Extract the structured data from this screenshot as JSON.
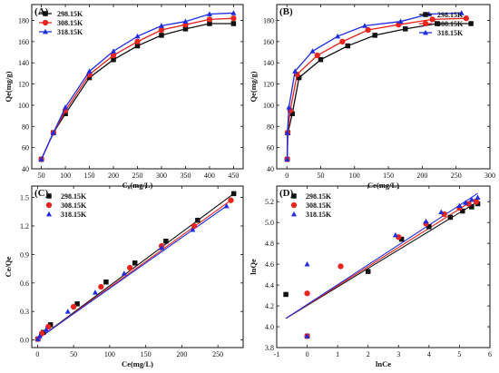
{
  "series_names": [
    "298.15K",
    "308.15K",
    "318.15K"
  ],
  "colors": [
    "#111111",
    "#e8241d",
    "#1f2de0"
  ],
  "chart_data": [
    {
      "type": "line",
      "label": "(A)",
      "xlabel": "C₀(mg/L)",
      "ylabel": "Qe(mg/g)",
      "xlim": [
        30,
        470
      ],
      "ylim": [
        40,
        195
      ],
      "xticks": [
        50,
        100,
        150,
        200,
        250,
        300,
        350,
        400,
        450
      ],
      "yticks": [
        40,
        60,
        80,
        100,
        120,
        140,
        160,
        180
      ],
      "legend": "top-left",
      "series": [
        {
          "name": "298.15K",
          "x": [
            50,
            75,
            100,
            150,
            200,
            250,
            300,
            350,
            400,
            450
          ],
          "y": [
            49,
            74,
            92,
            126,
            143,
            156,
            166,
            172,
            177,
            177
          ]
        },
        {
          "name": "308.15K",
          "x": [
            50,
            75,
            100,
            150,
            200,
            250,
            300,
            350,
            400,
            450
          ],
          "y": [
            49,
            74,
            95,
            129,
            147,
            160,
            171,
            176,
            181,
            182
          ]
        },
        {
          "name": "318.15K",
          "x": [
            50,
            75,
            100,
            150,
            200,
            250,
            300,
            350,
            400,
            450
          ],
          "y": [
            49,
            74,
            98,
            132,
            151,
            165,
            175,
            179,
            186,
            187
          ]
        }
      ]
    },
    {
      "type": "line",
      "label": "(B)",
      "xlabel": "Ce(mg/L)",
      "ylabel": "Qe(mg/g)",
      "xlim": [
        -15,
        300
      ],
      "ylim": [
        40,
        195
      ],
      "xticks": [
        0,
        50,
        100,
        150,
        200,
        250,
        300
      ],
      "yticks": [
        40,
        60,
        80,
        100,
        120,
        140,
        160,
        180
      ],
      "legend": "top-right",
      "series": [
        {
          "name": "298.15K",
          "x": [
            0.5,
            1.5,
            8,
            18,
            50,
            90,
            130,
            175,
            222,
            272
          ],
          "y": [
            49,
            74,
            92,
            126,
            143,
            156,
            166,
            172,
            177,
            177
          ]
        },
        {
          "name": "308.15K",
          "x": [
            0.5,
            1,
            5,
            15,
            45,
            82,
            120,
            165,
            215,
            265
          ],
          "y": [
            49,
            74,
            95,
            129,
            147,
            160,
            171,
            176,
            181,
            182
          ]
        },
        {
          "name": "318.15K",
          "x": [
            0.4,
            0.8,
            3,
            12,
            38,
            75,
            115,
            168,
            210,
            258
          ],
          "y": [
            49,
            74,
            98,
            132,
            151,
            165,
            175,
            179,
            186,
            187
          ]
        }
      ]
    },
    {
      "type": "scatter",
      "label": "(C)",
      "xlabel": "Ce(mg/L)",
      "ylabel": "Ce/Qe",
      "xlim": [
        -8,
        285
      ],
      "ylim": [
        -0.08,
        1.62
      ],
      "xticks": [
        0,
        50,
        100,
        150,
        200,
        250
      ],
      "yticks": [
        0.0,
        0.3,
        0.6,
        0.9,
        1.2,
        1.5
      ],
      "legend": "top-left",
      "series": [
        {
          "name": "298.15K",
          "x": [
            0.5,
            8,
            18,
            55,
            95,
            135,
            178,
            222,
            272
          ],
          "y": [
            0.01,
            0.08,
            0.16,
            0.38,
            0.61,
            0.81,
            1.04,
            1.26,
            1.54
          ]
        },
        {
          "name": "308.15K",
          "x": [
            0.5,
            6,
            15,
            50,
            88,
            128,
            172,
            217,
            268
          ],
          "y": [
            0.01,
            0.07,
            0.14,
            0.35,
            0.56,
            0.76,
            0.99,
            1.2,
            1.47
          ]
        },
        {
          "name": "318.15K",
          "x": [
            0.4,
            3,
            12,
            42,
            80,
            120,
            172,
            215,
            262
          ],
          "y": [
            0.01,
            0.04,
            0.11,
            0.3,
            0.5,
            0.7,
            0.97,
            1.16,
            1.41
          ]
        }
      ]
    },
    {
      "type": "scatter",
      "label": "(D)",
      "xlabel": "lnCe",
      "ylabel": "lnQe",
      "xlim": [
        -1,
        6
      ],
      "ylim": [
        3.8,
        5.35
      ],
      "xticks": [
        -1,
        0,
        1,
        2,
        3,
        4,
        5,
        6
      ],
      "yticks": [
        3.8,
        4.0,
        4.2,
        4.4,
        4.6,
        4.8,
        5.0,
        5.2
      ],
      "legend": "top-left",
      "series": [
        {
          "name": "298.15K",
          "x": [
            -0.7,
            0,
            2.0,
            3.1,
            4.0,
            4.7,
            5.1,
            5.4,
            5.6
          ],
          "y": [
            4.31,
            3.91,
            4.53,
            4.84,
            4.96,
            5.05,
            5.11,
            5.15,
            5.18
          ]
        },
        {
          "name": "308.15K",
          "x": [
            0,
            0,
            1.1,
            3.0,
            3.9,
            4.5,
            5.0,
            5.3,
            5.55
          ],
          "y": [
            3.91,
            4.32,
            4.58,
            4.86,
            4.99,
            5.08,
            5.14,
            5.18,
            5.2
          ]
        },
        {
          "name": "318.15K",
          "x": [
            0,
            0,
            2.9,
            3.9,
            4.4,
            5.0,
            5.2,
            5.4,
            5.6
          ],
          "y": [
            3.91,
            4.6,
            4.88,
            5.01,
            5.1,
            5.16,
            5.19,
            5.22,
            5.24
          ]
        }
      ],
      "fit_lines": [
        {
          "name": "298.15K",
          "x": [
            -0.7,
            5.6
          ],
          "y": [
            4.08,
            5.2
          ]
        },
        {
          "name": "308.15K",
          "x": [
            -0.7,
            5.6
          ],
          "y": [
            4.08,
            5.24
          ]
        },
        {
          "name": "318.15K",
          "x": [
            -0.7,
            5.6
          ],
          "y": [
            4.08,
            5.28
          ]
        }
      ]
    }
  ]
}
